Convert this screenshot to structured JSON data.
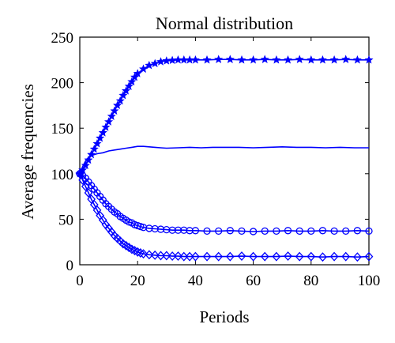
{
  "chart_data": {
    "type": "line",
    "title": "Normal distribution",
    "xlabel": "Periods",
    "ylabel": "Average frequencies",
    "xlim": [
      0,
      100
    ],
    "ylim": [
      0,
      250
    ],
    "xticks": [
      0,
      20,
      40,
      60,
      80,
      100
    ],
    "yticks": [
      0,
      50,
      100,
      150,
      200,
      250
    ],
    "grid": false,
    "legend": "none",
    "line_color": "#0000ff",
    "series": [
      {
        "marker": "star",
        "x": [
          0,
          1,
          2,
          3,
          4,
          5,
          6,
          7,
          8,
          9,
          10,
          11,
          12,
          13,
          14,
          15,
          16,
          17,
          18,
          19,
          20,
          22,
          24,
          26,
          28,
          30,
          32,
          34,
          36,
          38,
          40,
          44,
          48,
          52,
          56,
          60,
          64,
          68,
          72,
          76,
          80,
          84,
          88,
          92,
          96,
          100
        ],
        "values": [
          100,
          104,
          109,
          115,
          121,
          127,
          133,
          139,
          145,
          151,
          157,
          163,
          169,
          175,
          180,
          186,
          191,
          196,
          201,
          206,
          210,
          215,
          219,
          221,
          223,
          224,
          224.5,
          225,
          225,
          225,
          225,
          225,
          225.5,
          225.5,
          225,
          225,
          225.5,
          225,
          225,
          225.5,
          225,
          225,
          225,
          225.5,
          225,
          225
        ]
      },
      {
        "marker": "none",
        "x": [
          0,
          1,
          2,
          3,
          4,
          5,
          6,
          8,
          10,
          12,
          14,
          16,
          18,
          20,
          22,
          24,
          26,
          28,
          30,
          34,
          38,
          42,
          46,
          50,
          55,
          60,
          65,
          70,
          75,
          80,
          85,
          90,
          95,
          100
        ],
        "values": [
          100,
          108,
          114,
          118,
          120,
          121,
          122,
          123,
          125,
          126,
          127,
          128,
          129,
          130,
          130,
          129.5,
          129,
          128.5,
          128,
          128.5,
          129,
          128.5,
          129,
          129,
          129,
          128.5,
          129,
          129.5,
          129,
          129,
          128.5,
          129,
          128.5,
          128.5
        ]
      },
      {
        "marker": "circle",
        "x": [
          0,
          1,
          2,
          3,
          4,
          5,
          6,
          7,
          8,
          9,
          10,
          11,
          12,
          13,
          14,
          15,
          16,
          17,
          18,
          19,
          20,
          21,
          22,
          24,
          26,
          28,
          30,
          32,
          34,
          36,
          38,
          40,
          44,
          48,
          52,
          56,
          60,
          64,
          68,
          72,
          76,
          80,
          84,
          88,
          92,
          96,
          100
        ],
        "values": [
          100,
          98,
          95,
          91,
          87,
          83,
          79,
          75,
          71,
          67,
          64,
          61,
          58,
          56,
          53,
          51,
          49,
          47,
          46,
          44,
          43,
          42,
          41,
          40,
          39.5,
          39,
          38.5,
          38,
          38,
          38,
          37.5,
          37.5,
          37,
          37,
          37.5,
          37,
          36.5,
          37,
          37,
          37.5,
          37,
          37,
          37.5,
          37,
          37,
          37.5,
          37
        ]
      },
      {
        "marker": "diamond",
        "x": [
          0,
          1,
          2,
          3,
          4,
          5,
          6,
          7,
          8,
          9,
          10,
          11,
          12,
          13,
          14,
          15,
          16,
          17,
          18,
          19,
          20,
          21,
          22,
          24,
          26,
          28,
          30,
          32,
          34,
          36,
          38,
          40,
          44,
          48,
          52,
          56,
          60,
          64,
          68,
          72,
          76,
          80,
          84,
          88,
          92,
          96,
          100
        ],
        "values": [
          100,
          93,
          86,
          79,
          72,
          66,
          60,
          54,
          49,
          44,
          40,
          36,
          32,
          29,
          26,
          23,
          21,
          19,
          17,
          15.5,
          14,
          13,
          12,
          11,
          10.5,
          10,
          10,
          9.5,
          9.5,
          9,
          9,
          9,
          9,
          9,
          9,
          9.5,
          9,
          9,
          9,
          9.5,
          9,
          9,
          8.5,
          9,
          9,
          8.5,
          9
        ]
      }
    ]
  }
}
